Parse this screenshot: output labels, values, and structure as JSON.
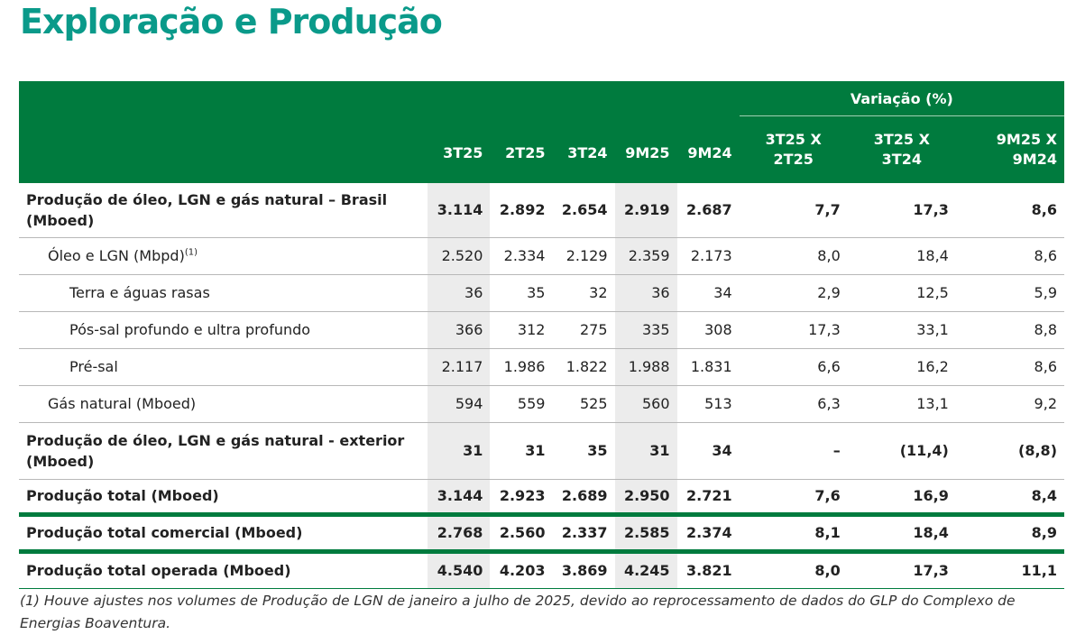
{
  "title": "Exploração e Produção",
  "table": {
    "group_header": "Variação (%)",
    "columns": [
      "3T25",
      "2T25",
      "3T24",
      "9M25",
      "9M24"
    ],
    "variation_columns": [
      "3T25 X 2T25",
      "3T25 X 3T24",
      "9M25 X 9M24"
    ],
    "rows": [
      {
        "label": "Produção de óleo, LGN e gás natural – Brasil (Mboed)",
        "sup": "",
        "values": [
          "3.114",
          "2.892",
          "2.654",
          "2.919",
          "2.687"
        ],
        "var": [
          "7,7",
          "17,3",
          "8,6"
        ]
      },
      {
        "label": "Óleo e LGN (Mbpd)",
        "sup": "(1)",
        "values": [
          "2.520",
          "2.334",
          "2.129",
          "2.359",
          "2.173"
        ],
        "var": [
          "8,0",
          "18,4",
          "8,6"
        ]
      },
      {
        "label": "Terra e águas rasas",
        "sup": "",
        "values": [
          "36",
          "35",
          "32",
          "36",
          "34"
        ],
        "var": [
          "2,9",
          "12,5",
          "5,9"
        ]
      },
      {
        "label": "Pós-sal profundo e ultra profundo",
        "sup": "",
        "values": [
          "366",
          "312",
          "275",
          "335",
          "308"
        ],
        "var": [
          "17,3",
          "33,1",
          "8,8"
        ]
      },
      {
        "label": "Pré-sal",
        "sup": "",
        "values": [
          "2.117",
          "1.986",
          "1.822",
          "1.988",
          "1.831"
        ],
        "var": [
          "6,6",
          "16,2",
          "8,6"
        ]
      },
      {
        "label": "Gás natural (Mboed)",
        "sup": "",
        "values": [
          "594",
          "559",
          "525",
          "560",
          "513"
        ],
        "var": [
          "6,3",
          "13,1",
          "9,2"
        ]
      },
      {
        "label": "Produção de óleo, LGN e gás natural - exterior (Mboed)",
        "sup": "",
        "values": [
          "31",
          "31",
          "35",
          "31",
          "34"
        ],
        "var": [
          "–",
          "(11,4)",
          "(8,8)"
        ]
      },
      {
        "label": "Produção total (Mboed)",
        "sup": "",
        "values": [
          "3.144",
          "2.923",
          "2.689",
          "2.950",
          "2.721"
        ],
        "var": [
          "7,6",
          "16,9",
          "8,4"
        ]
      },
      {
        "label": "Produção total comercial (Mboed)",
        "sup": "",
        "values": [
          "2.768",
          "2.560",
          "2.337",
          "2.585",
          "2.374"
        ],
        "var": [
          "8,1",
          "18,4",
          "8,9"
        ]
      },
      {
        "label": "Produção total operada (Mboed)",
        "sup": "",
        "values": [
          "4.540",
          "4.203",
          "3.869",
          "4.245",
          "3.821"
        ],
        "var": [
          "8,0",
          "17,3",
          "11,1"
        ]
      }
    ]
  },
  "footnote": "(1) Houve ajustes nos volumes de Produção de LGN de janeiro a julho de 2025, devido ao reprocessamento de dados do GLP do Complexo de Energias Boaventura."
}
